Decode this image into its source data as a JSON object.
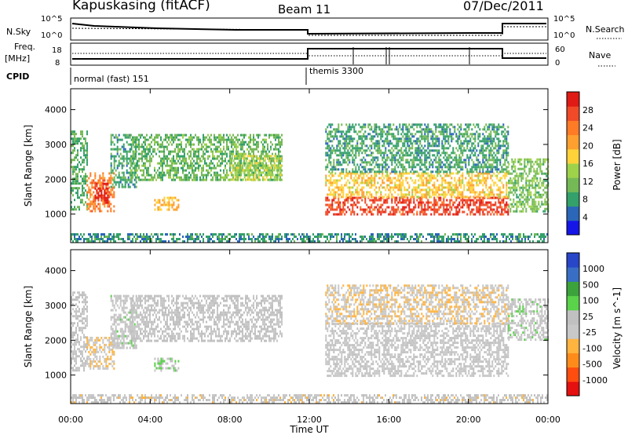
{
  "header": {
    "station": "Kapuskasing (fitACF)",
    "beam": "Beam 11",
    "date": "07/Dec/2011"
  },
  "panel_labels": {
    "nsky": "N.Sky",
    "nsky_ticks": [
      "10^5",
      "10^0"
    ],
    "nsearch": "N.Search",
    "nsearch_ticks": [
      "10^5",
      "10^0"
    ],
    "freq": "Freq.",
    "freq_unit": "[MHz]",
    "freq_ticks": [
      "18",
      "8"
    ],
    "nave": "Nave",
    "nave_ticks": [
      "60",
      "0"
    ],
    "cpid": "CPID",
    "cpid_modes": [
      "normal (fast) 151",
      "themis 3300"
    ]
  },
  "colors": {
    "power": [
      "#1515e8",
      "#2b66b8",
      "#34a06a",
      "#75b957",
      "#9ed24a",
      "#ffd23a",
      "#fda02f",
      "#ff7b26",
      "#f04a28",
      "#e01a14"
    ],
    "velocity": [
      "#e51010",
      "#ff4d10",
      "#ff8c1a",
      "#ffb440",
      "#c8c8c8",
      "#c0c0c0",
      "#5ad24a",
      "#3ca33c",
      "#3a6ec4",
      "#2846c8"
    ]
  },
  "chart_data": [
    {
      "type": "heatmap",
      "name": "power",
      "ylabel": "Slant Range [km]",
      "ylim": [
        180,
        4600
      ],
      "yticks": [
        1000,
        2000,
        3000,
        4000
      ],
      "xlim": [
        0,
        24
      ],
      "colorbar": {
        "label": "Power [dB]",
        "ticks": [
          "28",
          "24",
          "20",
          "16",
          "12",
          "8",
          "4"
        ],
        "range": [
          0,
          30
        ]
      },
      "regions": [
        {
          "t": [
            0.0,
            0.8
          ],
          "r": [
            1100,
            3400
          ],
          "value": 9
        },
        {
          "t": [
            0.8,
            2.2
          ],
          "r": [
            1100,
            2200
          ],
          "value": 22
        },
        {
          "t": [
            1.2,
            1.9
          ],
          "r": [
            1300,
            1900
          ],
          "value": 28
        },
        {
          "t": [
            2.0,
            3.3
          ],
          "r": [
            1800,
            3300
          ],
          "value": 8
        },
        {
          "t": [
            4.2,
            5.4
          ],
          "r": [
            1100,
            1500
          ],
          "value": 18
        },
        {
          "t": [
            3.0,
            10.6
          ],
          "r": [
            2000,
            3300
          ],
          "value": 10
        },
        {
          "t": [
            8.0,
            10.6
          ],
          "r": [
            2000,
            2700
          ],
          "value": 14
        },
        {
          "t": [
            12.8,
            22.0
          ],
          "r": [
            1000,
            1500
          ],
          "value": 26
        },
        {
          "t": [
            12.8,
            22.0
          ],
          "r": [
            1500,
            2200
          ],
          "value": 17
        },
        {
          "t": [
            12.8,
            22.0
          ],
          "r": [
            2200,
            3600
          ],
          "value": 8
        },
        {
          "t": [
            22.0,
            24.0
          ],
          "r": [
            1100,
            2600
          ],
          "value": 11
        },
        {
          "t": [
            0.0,
            24.0
          ],
          "r": [
            200,
            450
          ],
          "value": 7
        }
      ]
    },
    {
      "type": "heatmap",
      "name": "velocity",
      "ylabel": "Slant Range [km]",
      "ylim": [
        180,
        4600
      ],
      "yticks": [
        1000,
        2000,
        3000,
        4000
      ],
      "xlim": [
        0,
        24
      ],
      "xlabel": "Time UT",
      "xticks": [
        "00:00",
        "04:00",
        "08:00",
        "12:00",
        "16:00",
        "20:00",
        "00:00"
      ],
      "colorbar": {
        "label": "Velocity [m s^-1]",
        "ticks": [
          "1000",
          "500",
          "100",
          "25",
          "-25",
          "-100",
          "-500",
          "-1000"
        ],
        "range": [
          -1000,
          1000
        ]
      },
      "regions": [
        {
          "t": [
            0.0,
            0.8
          ],
          "r": [
            1100,
            3400
          ],
          "value": 10
        },
        {
          "t": [
            0.8,
            2.2
          ],
          "r": [
            1200,
            2100
          ],
          "value": -180
        },
        {
          "t": [
            2.0,
            3.3
          ],
          "r": [
            1800,
            3300
          ],
          "value": 60
        },
        {
          "t": [
            4.2,
            5.4
          ],
          "r": [
            1100,
            1500
          ],
          "value": 150
        },
        {
          "t": [
            3.0,
            10.6
          ],
          "r": [
            2000,
            3300
          ],
          "value": 5
        },
        {
          "t": [
            12.8,
            22.0
          ],
          "r": [
            1000,
            2500
          ],
          "value": 0
        },
        {
          "t": [
            12.8,
            22.0
          ],
          "r": [
            2500,
            3600
          ],
          "value": -150
        },
        {
          "t": [
            22.0,
            24.0
          ],
          "r": [
            2000,
            3200
          ],
          "value": 80
        },
        {
          "t": [
            0.0,
            24.0
          ],
          "r": [
            200,
            450
          ],
          "value": -60
        }
      ]
    }
  ]
}
